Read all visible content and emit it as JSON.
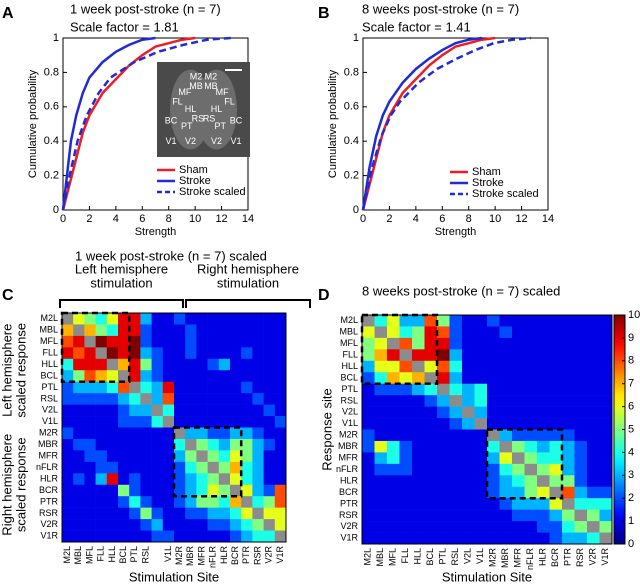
{
  "chart_data": [
    {
      "type": "line",
      "panel": "A",
      "title": "1 week post-stroke (n = 7)",
      "subtitle": "Scale factor = 1.81",
      "xlabel": "Strength",
      "ylabel": "Cumulative probability",
      "xlim": [
        0,
        14
      ],
      "xticks": [
        0,
        2,
        4,
        6,
        8,
        10,
        12,
        14
      ],
      "ylim": [
        0,
        1
      ],
      "yticks": [
        0,
        0.2,
        0.4,
        0.6,
        0.8,
        1
      ],
      "inset_labels": [
        "M2",
        "MB",
        "MF",
        "FL",
        "HL",
        "BC",
        "RS",
        "PT",
        "V1",
        "V2"
      ],
      "series": [
        {
          "name": "Sham",
          "color": "#ee1c24",
          "linestyle": "solid",
          "x": [
            0,
            0.5,
            1,
            1.5,
            2,
            3,
            4,
            5,
            6,
            7,
            8,
            9,
            10
          ],
          "values": [
            0,
            0.15,
            0.3,
            0.45,
            0.55,
            0.68,
            0.76,
            0.84,
            0.9,
            0.95,
            0.97,
            0.99,
            1
          ]
        },
        {
          "name": "Stroke",
          "color": "#1f2bd6",
          "linestyle": "solid",
          "x": [
            0,
            0.3,
            0.6,
            1,
            1.5,
            2,
            3,
            4,
            5,
            6,
            7
          ],
          "values": [
            0,
            0.2,
            0.4,
            0.55,
            0.68,
            0.77,
            0.86,
            0.92,
            0.96,
            0.99,
            1
          ]
        },
        {
          "name": "Stroke scaled",
          "color": "#1f2bd6",
          "linestyle": "dashed",
          "x": [
            0,
            0.5,
            1.1,
            1.8,
            2.7,
            3.6,
            5.4,
            7.2,
            9.1,
            10.9,
            12.7
          ],
          "values": [
            0,
            0.2,
            0.4,
            0.55,
            0.68,
            0.77,
            0.86,
            0.92,
            0.96,
            0.99,
            1
          ]
        }
      ]
    },
    {
      "type": "line",
      "panel": "B",
      "title": "8 weeks post-stroke (n = 7)",
      "subtitle": "Scale factor = 1.41",
      "xlabel": "Strength",
      "ylabel": "Cumulative probability",
      "xlim": [
        0,
        14
      ],
      "xticks": [
        0,
        2,
        4,
        6,
        8,
        10,
        12,
        14
      ],
      "ylim": [
        0,
        1
      ],
      "yticks": [
        0,
        0.2,
        0.4,
        0.6,
        0.8,
        1
      ],
      "series": [
        {
          "name": "Sham",
          "color": "#ee1c24",
          "linestyle": "solid",
          "x": [
            0,
            0.5,
            1,
            1.5,
            2,
            3,
            4,
            5,
            6,
            7,
            8,
            9,
            10
          ],
          "values": [
            0,
            0.15,
            0.3,
            0.45,
            0.55,
            0.68,
            0.76,
            0.84,
            0.9,
            0.95,
            0.97,
            0.99,
            1
          ]
        },
        {
          "name": "Stroke",
          "color": "#1f2bd6",
          "linestyle": "solid",
          "x": [
            0,
            0.5,
            1,
            1.5,
            2,
            3,
            4,
            5,
            6,
            7,
            8,
            9
          ],
          "values": [
            0,
            0.25,
            0.43,
            0.55,
            0.63,
            0.74,
            0.82,
            0.88,
            0.93,
            0.97,
            0.99,
            1
          ]
        },
        {
          "name": "Stroke scaled",
          "color": "#1f2bd6",
          "linestyle": "dashed",
          "x": [
            0,
            0.7,
            1.4,
            2.1,
            2.8,
            4.2,
            5.6,
            7.1,
            8.5,
            9.9,
            11.3,
            12.7
          ],
          "values": [
            0,
            0.25,
            0.43,
            0.55,
            0.63,
            0.74,
            0.82,
            0.88,
            0.93,
            0.97,
            0.99,
            1
          ]
        }
      ]
    },
    {
      "type": "heatmap",
      "panel": "C",
      "title": "1 week post-stroke (n = 7) scaled",
      "xlabel": "Stimulation Site",
      "col_group_labels": [
        [
          "Left hemisphere",
          "stimulation"
        ],
        [
          "Right hemisphere",
          "stimulation"
        ]
      ],
      "row_group_labels": [
        [
          "Left hemisphere",
          "scaled response"
        ],
        [
          "Right hemisphere",
          "scaled response"
        ]
      ],
      "zlim": [
        0,
        10
      ],
      "rows": [
        "M2L",
        "MBL",
        "MFL",
        "FLL",
        "HLL",
        "BCL",
        "PTL",
        "RSL",
        "V2L",
        "V1L",
        "M2R",
        "MBR",
        "MFR",
        "nFLR",
        "HLR",
        "BCR",
        "PTR",
        "RSR",
        "V2R",
        "V1R"
      ],
      "columns": [
        "M2L",
        "MBL",
        "MFL",
        "FLL",
        "HLL",
        "BCL",
        "PTL",
        "RSL",
        null,
        "V1L",
        "M2R",
        "MBR",
        "MFR",
        "nFLR",
        "HLR",
        "BCR",
        "PTR",
        "RSR",
        "V2R",
        "V1R"
      ],
      "values": [
        [
          null,
          6,
          5,
          4,
          6,
          9,
          9,
          3,
          1,
          1,
          2,
          1,
          1,
          1,
          1,
          1,
          1,
          1,
          1,
          1
        ],
        [
          7,
          null,
          7,
          5,
          4,
          9,
          9,
          2,
          1,
          1,
          1,
          2,
          1,
          1,
          1,
          1,
          1,
          1,
          1,
          1
        ],
        [
          8,
          9,
          null,
          10,
          9,
          9,
          10,
          2,
          1,
          1,
          1,
          2,
          1,
          1,
          1,
          1,
          1,
          1,
          1,
          1
        ],
        [
          9,
          8,
          9,
          null,
          10,
          9,
          10,
          3,
          2,
          1,
          1,
          2,
          1,
          1,
          1,
          1,
          2,
          1,
          1,
          1
        ],
        [
          4,
          9,
          9,
          9,
          null,
          7,
          9,
          5,
          2,
          1,
          1,
          1,
          1,
          2,
          3,
          1,
          1,
          1,
          1,
          1
        ],
        [
          3,
          5,
          8,
          7,
          6,
          null,
          9,
          3,
          2,
          1,
          1,
          1,
          1,
          1,
          1,
          1,
          1,
          1,
          1,
          1
        ],
        [
          2,
          3,
          3,
          3,
          4,
          8,
          null,
          4,
          3,
          9,
          1,
          1,
          1,
          1,
          1,
          1,
          2,
          1,
          1,
          1
        ],
        [
          2,
          2,
          2,
          2,
          2,
          3,
          4,
          null,
          3,
          8,
          1,
          1,
          1,
          1,
          1,
          1,
          1,
          2,
          1,
          1
        ],
        [
          1,
          1,
          1,
          1,
          1,
          2,
          3,
          3,
          null,
          4,
          1,
          1,
          1,
          1,
          1,
          1,
          1,
          1,
          2,
          1
        ],
        [
          1,
          1,
          1,
          1,
          1,
          2,
          2,
          2,
          4,
          null,
          1,
          1,
          1,
          1,
          1,
          1,
          1,
          1,
          1,
          2
        ],
        [
          2,
          1,
          1,
          1,
          1,
          1,
          1,
          1,
          1,
          1,
          null,
          3,
          3,
          2,
          2,
          3,
          3,
          2,
          1,
          1
        ],
        [
          1,
          2,
          2,
          1,
          1,
          1,
          1,
          1,
          1,
          1,
          4,
          null,
          5,
          4,
          3,
          5,
          5,
          3,
          2,
          1
        ],
        [
          1,
          1,
          2,
          2,
          1,
          1,
          1,
          1,
          1,
          1,
          3,
          5,
          null,
          5,
          4,
          6,
          5,
          3,
          1,
          1
        ],
        [
          1,
          1,
          1,
          2,
          2,
          1,
          1,
          1,
          1,
          1,
          2,
          4,
          5,
          null,
          5,
          7,
          4,
          3,
          1,
          1
        ],
        [
          1,
          2,
          1,
          3,
          9,
          1,
          2,
          1,
          1,
          1,
          2,
          3,
          4,
          5,
          null,
          6,
          4,
          3,
          1,
          1
        ],
        [
          1,
          1,
          1,
          1,
          1,
          5,
          2,
          1,
          1,
          1,
          2,
          3,
          4,
          6,
          5,
          null,
          6,
          3,
          2,
          8
        ],
        [
          1,
          1,
          1,
          1,
          1,
          2,
          4,
          2,
          1,
          1,
          2,
          3,
          5,
          5,
          4,
          7,
          null,
          4,
          5,
          8
        ],
        [
          1,
          1,
          1,
          1,
          1,
          1,
          2,
          5,
          2,
          1,
          1,
          2,
          2,
          3,
          3,
          4,
          6,
          null,
          6,
          6
        ],
        [
          1,
          1,
          1,
          1,
          1,
          1,
          1,
          2,
          3,
          1,
          1,
          1,
          1,
          2,
          2,
          3,
          4,
          5,
          null,
          6
        ],
        [
          1,
          1,
          1,
          1,
          1,
          1,
          1,
          1,
          2,
          2,
          1,
          1,
          1,
          1,
          1,
          2,
          3,
          4,
          4,
          null
        ]
      ]
    },
    {
      "type": "heatmap",
      "panel": "D",
      "title": "8 weeks post-stroke (n = 7) scaled",
      "xlabel": "Stimulation Site",
      "ylabel": "Response site",
      "zlim": [
        0,
        10
      ],
      "colorbar_ticks": [
        0,
        1,
        2,
        3,
        4,
        5,
        6,
        7,
        8,
        9,
        10
      ],
      "rows": [
        "M2L",
        "MBL",
        "MFL",
        "FLL",
        "HLL",
        "BCL",
        "PTL",
        "RSL",
        "V2L",
        "V1L",
        "M2R",
        "MBR",
        "MFR",
        "nFLR",
        "HLR",
        "BCR",
        "PTR",
        "RSR",
        "V2R",
        "V1R"
      ],
      "columns": [
        "M2L",
        "MBL",
        "MFL",
        "FLL",
        "HLL",
        "BCL",
        "PTL",
        "RSL",
        "V2L",
        "V1L",
        "M2R",
        "MBR",
        "MFR",
        "nFLR",
        "HLR",
        "BCR",
        "PTR",
        "RSR",
        "V2R",
        "V1R"
      ],
      "values": [
        [
          null,
          4,
          6,
          3,
          3,
          8,
          5,
          2,
          1,
          1,
          2,
          1,
          1,
          1,
          1,
          1,
          1,
          1,
          1,
          1
        ],
        [
          6,
          null,
          6,
          4,
          5,
          9,
          8,
          2,
          1,
          1,
          1,
          2,
          1,
          1,
          1,
          1,
          1,
          1,
          1,
          1
        ],
        [
          5,
          6,
          null,
          8,
          5,
          9,
          9,
          2,
          1,
          1,
          1,
          1,
          1,
          1,
          1,
          1,
          1,
          1,
          1,
          1
        ],
        [
          5,
          7,
          9,
          null,
          9,
          9,
          10,
          3,
          1,
          1,
          1,
          1,
          1,
          1,
          1,
          1,
          1,
          1,
          1,
          1
        ],
        [
          3,
          6,
          6,
          8,
          null,
          6,
          8,
          4,
          1,
          1,
          1,
          1,
          1,
          1,
          1,
          1,
          1,
          1,
          1,
          1
        ],
        [
          2,
          4,
          7,
          6,
          7,
          null,
          9,
          3,
          1,
          1,
          1,
          1,
          1,
          1,
          1,
          1,
          1,
          1,
          1,
          1
        ],
        [
          1,
          2,
          2,
          2,
          3,
          4,
          null,
          4,
          3,
          4,
          1,
          1,
          1,
          1,
          1,
          1,
          1,
          1,
          1,
          1
        ],
        [
          1,
          1,
          1,
          1,
          1,
          2,
          3,
          null,
          3,
          4,
          1,
          1,
          1,
          1,
          1,
          1,
          1,
          1,
          1,
          1
        ],
        [
          1,
          1,
          1,
          1,
          1,
          1,
          2,
          3,
          null,
          3,
          1,
          1,
          1,
          1,
          1,
          1,
          1,
          1,
          1,
          1
        ],
        [
          1,
          1,
          1,
          1,
          1,
          1,
          1,
          2,
          3,
          null,
          1,
          1,
          1,
          1,
          1,
          1,
          1,
          1,
          1,
          1
        ],
        [
          2,
          1,
          1,
          1,
          1,
          1,
          1,
          1,
          1,
          1,
          null,
          3,
          2,
          2,
          2,
          2,
          2,
          1,
          1,
          1
        ],
        [
          2,
          6,
          4,
          2,
          1,
          1,
          1,
          1,
          1,
          1,
          4,
          null,
          5,
          4,
          3,
          4,
          3,
          2,
          1,
          1
        ],
        [
          1,
          3,
          4,
          2,
          1,
          1,
          1,
          1,
          1,
          1,
          3,
          6,
          null,
          5,
          4,
          4,
          3,
          2,
          1,
          1
        ],
        [
          1,
          2,
          2,
          2,
          1,
          1,
          1,
          1,
          1,
          1,
          2,
          4,
          5,
          null,
          5,
          6,
          3,
          2,
          1,
          1
        ],
        [
          1,
          1,
          1,
          1,
          1,
          1,
          1,
          1,
          1,
          1,
          2,
          3,
          4,
          5,
          null,
          5,
          5,
          2,
          1,
          1
        ],
        [
          1,
          1,
          1,
          1,
          1,
          1,
          1,
          1,
          1,
          1,
          2,
          3,
          3,
          5,
          6,
          null,
          8,
          3,
          2,
          2
        ],
        [
          1,
          1,
          1,
          1,
          1,
          1,
          1,
          1,
          1,
          1,
          1,
          2,
          3,
          3,
          3,
          6,
          null,
          4,
          4,
          4
        ],
        [
          1,
          1,
          1,
          1,
          1,
          1,
          1,
          1,
          1,
          1,
          1,
          1,
          2,
          2,
          2,
          3,
          5,
          null,
          5,
          3
        ],
        [
          1,
          1,
          1,
          1,
          1,
          1,
          1,
          1,
          1,
          1,
          1,
          1,
          1,
          1,
          2,
          2,
          4,
          5,
          null,
          5
        ],
        [
          1,
          1,
          1,
          1,
          1,
          1,
          1,
          1,
          1,
          1,
          1,
          1,
          1,
          1,
          1,
          2,
          3,
          3,
          4,
          null
        ]
      ]
    }
  ]
}
